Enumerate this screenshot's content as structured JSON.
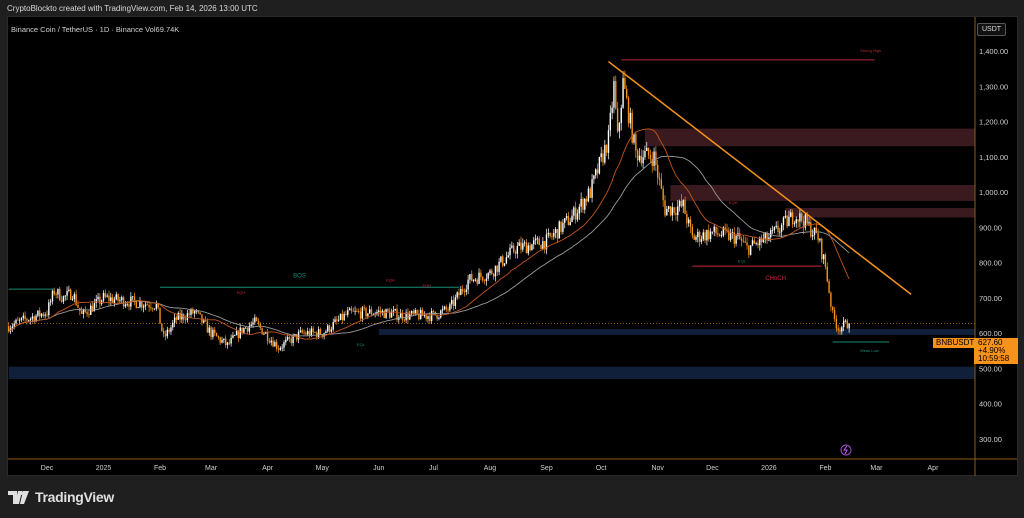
{
  "header": {
    "attribution": "CryptoBlockto created with TradingView.com, Feb 14, 2026 13:00 UTC"
  },
  "symbol_info": "Binance Coin / TetherUS · 1D · Binance  Vol69.74K",
  "price_axis": {
    "currency": "USDT",
    "ticks": [
      "1,400.00",
      "1,300.00",
      "1,200.00",
      "1,100.00",
      "1,000.00",
      "900.00",
      "800.00",
      "700.00",
      "600.00",
      "500.00",
      "400.00",
      "300.00"
    ],
    "tick_values": [
      1400,
      1300,
      1200,
      1100,
      1000,
      900,
      800,
      700,
      600,
      500,
      400,
      300
    ]
  },
  "time_axis": {
    "ticks": [
      "Dec",
      "2025",
      "Feb",
      "Mar",
      "Apr",
      "May",
      "Jun",
      "Jul",
      "Aug",
      "Sep",
      "Oct",
      "Nov",
      "Dec",
      "2026",
      "Feb",
      "Mar",
      "Apr"
    ],
    "tick_dates": [
      "2024-12-01",
      "2025-01-01",
      "2025-02-01",
      "2025-03-01",
      "2025-04-01",
      "2025-05-01",
      "2025-06-01",
      "2025-07-01",
      "2025-08-01",
      "2025-09-01",
      "2025-10-01",
      "2025-11-01",
      "2025-12-01",
      "2026-01-01",
      "2026-02-01",
      "2026-03-01",
      "2026-04-01"
    ]
  },
  "last_price": {
    "symbol": "BNBUSDT",
    "price": "627.60",
    "change": "+4.90%",
    "countdown": "10:59:58",
    "value": 627.6
  },
  "annotations": {
    "strong_high": "Strong High",
    "weak_low": "Weak Low",
    "bos": "BOS",
    "choch": "CHoCH",
    "eqh": "EQH",
    "eql": "EQL"
  },
  "colors": {
    "up": "#ffffff",
    "down": "#f7931a",
    "trend": "#f7931a",
    "supply": "#3a1a1e",
    "demand": "#10203a",
    "ma_fast": "#c2551a",
    "ma_slow": "#9a9a9a"
  },
  "chart_data": {
    "type": "candlestick",
    "title": "Binance Coin / TetherUS · 1D · Binance",
    "ylim": [
      250,
      1480
    ],
    "xlim": [
      "2024-11-10",
      "2026-04-25"
    ],
    "path": [
      [
        "2024-11-10",
        620
      ],
      [
        "2024-11-20",
        640
      ],
      [
        "2024-12-01",
        660
      ],
      [
        "2024-12-05",
        720
      ],
      [
        "2024-12-10",
        700
      ],
      [
        "2024-12-15",
        715
      ],
      [
        "2024-12-20",
        650
      ],
      [
        "2025-01-01",
        700
      ],
      [
        "2025-01-15",
        690
      ],
      [
        "2025-01-30",
        680
      ],
      [
        "2025-02-03",
        585
      ],
      [
        "2025-02-10",
        640
      ],
      [
        "2025-02-20",
        660
      ],
      [
        "2025-03-01",
        600
      ],
      [
        "2025-03-10",
        565
      ],
      [
        "2025-03-18",
        610
      ],
      [
        "2025-03-25",
        630
      ],
      [
        "2025-04-07",
        560
      ],
      [
        "2025-04-20",
        600
      ],
      [
        "2025-05-01",
        600
      ],
      [
        "2025-05-15",
        655
      ],
      [
        "2025-06-01",
        660
      ],
      [
        "2025-06-15",
        650
      ],
      [
        "2025-07-01",
        650
      ],
      [
        "2025-07-10",
        670
      ],
      [
        "2025-07-20",
        750
      ],
      [
        "2025-08-01",
        770
      ],
      [
        "2025-08-15",
        840
      ],
      [
        "2025-09-01",
        860
      ],
      [
        "2025-09-15",
        930
      ],
      [
        "2025-09-25",
        1000
      ],
      [
        "2025-10-05",
        1150
      ],
      [
        "2025-10-08",
        1300
      ],
      [
        "2025-10-10",
        1150
      ],
      [
        "2025-10-13",
        1310
      ],
      [
        "2025-10-20",
        1110
      ],
      [
        "2025-10-30",
        1100
      ],
      [
        "2025-11-05",
        950
      ],
      [
        "2025-11-15",
        960
      ],
      [
        "2025-11-20",
        870
      ],
      [
        "2025-12-01",
        885
      ],
      [
        "2025-12-15",
        870
      ],
      [
        "2025-12-20",
        840
      ],
      [
        "2026-01-01",
        870
      ],
      [
        "2026-01-15",
        935
      ],
      [
        "2026-01-20",
        920
      ],
      [
        "2026-01-28",
        870
      ],
      [
        "2026-02-01",
        790
      ],
      [
        "2026-02-05",
        650
      ],
      [
        "2026-02-08",
        615
      ],
      [
        "2026-02-14",
        627.6
      ]
    ],
    "zones": [
      {
        "type": "supply",
        "from": "2025-10-25",
        "top": 1180,
        "bottom": 1130
      },
      {
        "type": "supply",
        "from": "2025-11-08",
        "top": 1020,
        "bottom": 975
      },
      {
        "type": "supply",
        "from": "2026-01-10",
        "top": 955,
        "bottom": 928
      },
      {
        "type": "demand",
        "from": "2025-06-01",
        "top": 612,
        "bottom": 595
      },
      {
        "type": "demand",
        "from": "2024-11-10",
        "top": 505,
        "bottom": 470
      }
    ],
    "trendline": [
      [
        "2025-10-05",
        1370
      ],
      [
        "2026-03-20",
        710
      ]
    ],
    "levels": [
      {
        "label": "Strong High",
        "price": 1375,
        "from": "2025-10-12",
        "to": "2026-02-28",
        "color": "#b02a3a"
      },
      {
        "label": "CHoCH",
        "price": 790,
        "from": "2025-11-20",
        "to": "2026-01-30",
        "color": "#c8283a"
      },
      {
        "label": "BOS",
        "price": 730,
        "from": "2025-02-01",
        "to": "2025-07-15",
        "color": "#1a8a74"
      },
      {
        "label": "",
        "price": 725,
        "from": "2024-11-10",
        "to": "2024-12-05",
        "color": "#1a8a74"
      },
      {
        "label": "Weak Low",
        "price": 575,
        "from": "2026-02-05",
        "to": "2026-03-08",
        "color": "#1a8a74"
      }
    ]
  }
}
